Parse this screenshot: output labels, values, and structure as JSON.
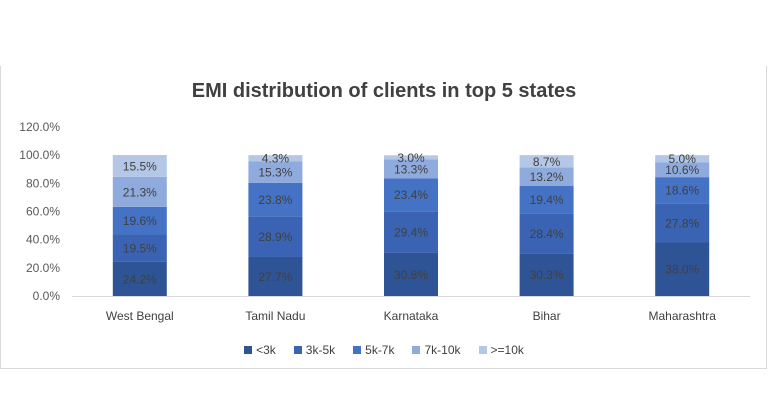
{
  "chart_data": {
    "type": "bar",
    "stacked": true,
    "title": "EMI distribution of clients in top 5 states",
    "categories": [
      "West Bengal",
      "Tamil Nadu",
      "Karnataka",
      "Bihar",
      "Maharashtra"
    ],
    "ylim": [
      0,
      120
    ],
    "yticks": [
      "0.0%",
      "20.0%",
      "40.0%",
      "60.0%",
      "80.0%",
      "100.0%",
      "120.0%"
    ],
    "grid": false,
    "legend_position": "bottom",
    "series": [
      {
        "name": "<3k",
        "color": "#2f5496",
        "values": [
          24.2,
          27.7,
          30.8,
          30.3,
          38.0
        ],
        "labels": [
          "24.2%",
          "27.7%",
          "30.8%",
          "30.3%",
          "38.0%"
        ]
      },
      {
        "name": "3k-5k",
        "color": "#3a64b3",
        "values": [
          19.5,
          28.9,
          29.4,
          28.4,
          27.8
        ],
        "labels": [
          "19.5%",
          "28.9%",
          "29.4%",
          "28.4%",
          "27.8%"
        ]
      },
      {
        "name": "5k-7k",
        "color": "#4472c4",
        "values": [
          19.6,
          23.8,
          23.4,
          19.4,
          18.6
        ],
        "labels": [
          "19.6%",
          "23.8%",
          "23.4%",
          "19.4%",
          "18.6%"
        ]
      },
      {
        "name": "7k-10k",
        "color": "#8faadc",
        "values": [
          21.3,
          15.3,
          13.3,
          13.2,
          10.6
        ],
        "labels": [
          "21.3%",
          "15.3%",
          "13.3%",
          "13.2%",
          "10.6%"
        ]
      },
      {
        "name": ">=10k",
        "color": "#b4c7e7",
        "values": [
          15.5,
          4.3,
          3.0,
          8.7,
          5.0
        ],
        "labels": [
          "15.5%",
          "4.3%",
          "3.0%",
          "8.7%",
          "5.0%"
        ]
      }
    ]
  }
}
